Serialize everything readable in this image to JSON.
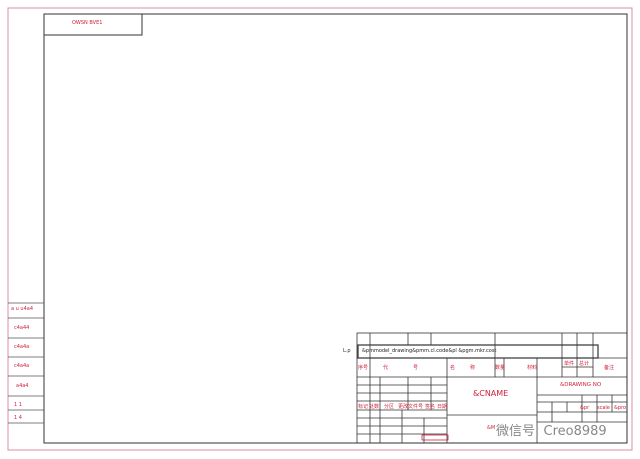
{
  "sheet": {
    "corner_label": "OWSN BVE1",
    "side_labels": [
      "a u u4a4",
      "c4a44",
      "c4a4a",
      "c4a4a",
      "a4a4",
      "1   1",
      "1   4"
    ],
    "title_block": {
      "lp_label": "L.p",
      "param_line": "&pmmodel_drawing&pmm.cl.code&pl  &pgm.mkr.cost",
      "header_cells": [
        "序号",
        "代",
        "号",
        "名",
        "称",
        "数量",
        "材料",
        "单件",
        "总计",
        "备注"
      ],
      "cname": "&CNAME",
      "drawing_no": "&DRAWING NO",
      "scale_row": [
        "&pr",
        "scale",
        "&pro"
      ],
      "sign_labels": [
        "标记",
        "处数",
        "分区",
        "更改文件号",
        "签名",
        "日期"
      ],
      "mark_label": "&M"
    },
    "watermark": "微信号: Creo8989"
  },
  "colors": {
    "frame": "#333333",
    "border": "#d98ca0",
    "text": "#d0203a"
  }
}
